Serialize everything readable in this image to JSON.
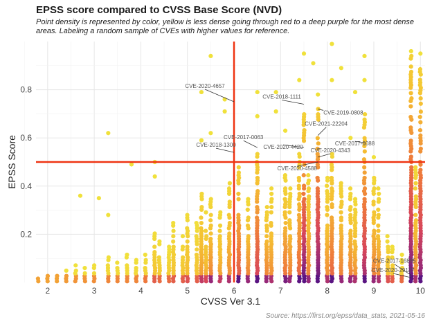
{
  "title": "EPSS score compared to CVSS Base Score (NVD)",
  "subtitle": "Point density is represented by color, yellow is less dense going through red to a deep purple for the most dense areas. Labeling a random sample of CVEs with higher values for reference.",
  "caption": "Source: https://first.org/epss/data_stats, 2021-05-16",
  "chart_data": {
    "type": "scatter",
    "xlabel": "CVSS Ver 3.1",
    "ylabel": "EPSS Score",
    "xlim": [
      1.75,
      10.1
    ],
    "ylim": [
      0,
      1.0
    ],
    "x_ticks": [
      2,
      3,
      4,
      5,
      6,
      7,
      8,
      9,
      10
    ],
    "y_ticks": [
      0.2,
      0.4,
      0.6,
      0.8
    ],
    "grid": true,
    "reference_lines": {
      "x": 6.0,
      "y": 0.5,
      "color": "#ee3311"
    },
    "annotations": [
      {
        "label": "CVE-2020-4657",
        "x": 6.0,
        "y": 0.75
      },
      {
        "label": "CVE-2018-1300",
        "x": 6.0,
        "y": 0.54
      },
      {
        "label": "CVE-2018-1111",
        "x": 7.5,
        "y": 0.74
      },
      {
        "label": "CVE-2019-0808",
        "x": 7.8,
        "y": 0.72
      },
      {
        "label": "CVE-2017-0063",
        "x": 6.5,
        "y": 0.56
      },
      {
        "label": "CVE-2021-22204",
        "x": 7.8,
        "y": 0.61
      },
      {
        "label": "CVE-2020-4420",
        "x": 7.5,
        "y": 0.56
      },
      {
        "label": "CVE-2020-4343",
        "x": 7.8,
        "y": 0.52
      },
      {
        "label": "CVE-2017-0088",
        "x": 8.8,
        "y": 0.58
      },
      {
        "label": "CVE-2020-4588",
        "x": 7.8,
        "y": 0.5
      },
      {
        "label": "CVE-2017-16885",
        "x": 9.8,
        "y": 0.03
      },
      {
        "label": "CVE-2020-29127",
        "x": 9.8,
        "y": 0.02
      }
    ],
    "columns": [
      {
        "x": 1.8,
        "top": 0.03,
        "density": 0.05
      },
      {
        "x": 2.0,
        "top": 0.03,
        "density": 0.05
      },
      {
        "x": 2.2,
        "top": 0.04,
        "density": 0.05
      },
      {
        "x": 2.4,
        "top": 0.06,
        "density": 0.08
      },
      {
        "x": 2.6,
        "top": 0.08,
        "density": 0.1
      },
      {
        "x": 2.8,
        "top": 0.07,
        "density": 0.1
      },
      {
        "x": 3.0,
        "top": 0.09,
        "density": 0.12
      },
      {
        "x": 3.3,
        "top": 0.12,
        "density": 0.15
      },
      {
        "x": 3.5,
        "top": 0.1,
        "density": 0.15
      },
      {
        "x": 3.7,
        "top": 0.12,
        "density": 0.15
      },
      {
        "x": 3.9,
        "top": 0.1,
        "density": 0.15
      },
      {
        "x": 4.1,
        "top": 0.12,
        "density": 0.2
      },
      {
        "x": 4.3,
        "top": 0.22,
        "density": 0.3
      },
      {
        "x": 4.4,
        "top": 0.18,
        "density": 0.25
      },
      {
        "x": 4.6,
        "top": 0.15,
        "density": 0.25
      },
      {
        "x": 4.7,
        "top": 0.25,
        "density": 0.3
      },
      {
        "x": 4.9,
        "top": 0.2,
        "density": 0.3
      },
      {
        "x": 5.0,
        "top": 0.3,
        "density": 0.35
      },
      {
        "x": 5.2,
        "top": 0.25,
        "density": 0.3
      },
      {
        "x": 5.3,
        "top": 0.4,
        "density": 0.45
      },
      {
        "x": 5.4,
        "top": 0.3,
        "density": 0.4
      },
      {
        "x": 5.5,
        "top": 0.35,
        "density": 0.55
      },
      {
        "x": 5.7,
        "top": 0.3,
        "density": 0.45
      },
      {
        "x": 5.9,
        "top": 0.42,
        "density": 0.5
      },
      {
        "x": 6.1,
        "top": 0.5,
        "density": 0.7
      },
      {
        "x": 6.3,
        "top": 0.35,
        "density": 0.55
      },
      {
        "x": 6.5,
        "top": 0.55,
        "density": 0.8
      },
      {
        "x": 6.7,
        "top": 0.35,
        "density": 0.55
      },
      {
        "x": 6.8,
        "top": 0.4,
        "density": 0.5
      },
      {
        "x": 7.1,
        "top": 0.45,
        "density": 0.6
      },
      {
        "x": 7.2,
        "top": 0.4,
        "density": 0.55
      },
      {
        "x": 7.4,
        "top": 0.55,
        "density": 0.65
      },
      {
        "x": 7.5,
        "top": 0.7,
        "density": 1.0
      },
      {
        "x": 7.6,
        "top": 0.45,
        "density": 0.55
      },
      {
        "x": 7.8,
        "top": 0.75,
        "density": 1.0
      },
      {
        "x": 8.0,
        "top": 0.45,
        "density": 0.5
      },
      {
        "x": 8.1,
        "top": 0.55,
        "density": 0.65
      },
      {
        "x": 8.3,
        "top": 0.45,
        "density": 0.55
      },
      {
        "x": 8.5,
        "top": 0.4,
        "density": 0.55
      },
      {
        "x": 8.6,
        "top": 0.35,
        "density": 0.5
      },
      {
        "x": 8.8,
        "top": 0.7,
        "density": 0.9
      },
      {
        "x": 9.0,
        "top": 0.45,
        "density": 0.55
      },
      {
        "x": 9.1,
        "top": 0.4,
        "density": 0.5
      },
      {
        "x": 9.3,
        "top": 0.2,
        "density": 0.35
      },
      {
        "x": 9.4,
        "top": 0.15,
        "density": 0.3
      },
      {
        "x": 9.6,
        "top": 0.12,
        "density": 0.25
      },
      {
        "x": 9.8,
        "top": 0.95,
        "density": 1.0
      },
      {
        "x": 9.9,
        "top": 0.5,
        "density": 0.5
      },
      {
        "x": 10.0,
        "top": 0.9,
        "density": 0.95
      }
    ],
    "scattered_points": [
      {
        "x": 3.3,
        "y": 0.62
      },
      {
        "x": 4.3,
        "y": 0.5
      },
      {
        "x": 4.3,
        "y": 0.44
      },
      {
        "x": 5.5,
        "y": 0.94
      },
      {
        "x": 5.3,
        "y": 0.79
      },
      {
        "x": 5.3,
        "y": 0.59
      },
      {
        "x": 5.5,
        "y": 0.62
      },
      {
        "x": 5.8,
        "y": 0.76
      },
      {
        "x": 5.8,
        "y": 0.71
      },
      {
        "x": 6.5,
        "y": 0.79
      },
      {
        "x": 6.5,
        "y": 0.69
      },
      {
        "x": 6.9,
        "y": 0.79
      },
      {
        "x": 6.9,
        "y": 0.71
      },
      {
        "x": 7.4,
        "y": 0.84
      },
      {
        "x": 7.5,
        "y": 0.95
      },
      {
        "x": 7.7,
        "y": 0.91
      },
      {
        "x": 7.8,
        "y": 0.78
      },
      {
        "x": 8.1,
        "y": 0.99
      },
      {
        "x": 8.1,
        "y": 0.84
      },
      {
        "x": 8.3,
        "y": 0.89
      },
      {
        "x": 8.6,
        "y": 0.79
      },
      {
        "x": 8.8,
        "y": 0.94
      },
      {
        "x": 8.8,
        "y": 0.84
      },
      {
        "x": 9.8,
        "y": 0.96
      },
      {
        "x": 10.0,
        "y": 0.95
      },
      {
        "x": 7.1,
        "y": 0.63
      },
      {
        "x": 8.5,
        "y": 0.6
      },
      {
        "x": 9.0,
        "y": 0.52
      },
      {
        "x": 3.8,
        "y": 0.49
      },
      {
        "x": 2.7,
        "y": 0.36
      },
      {
        "x": 3.1,
        "y": 0.35
      },
      {
        "x": 3.3,
        "y": 0.28
      }
    ]
  }
}
